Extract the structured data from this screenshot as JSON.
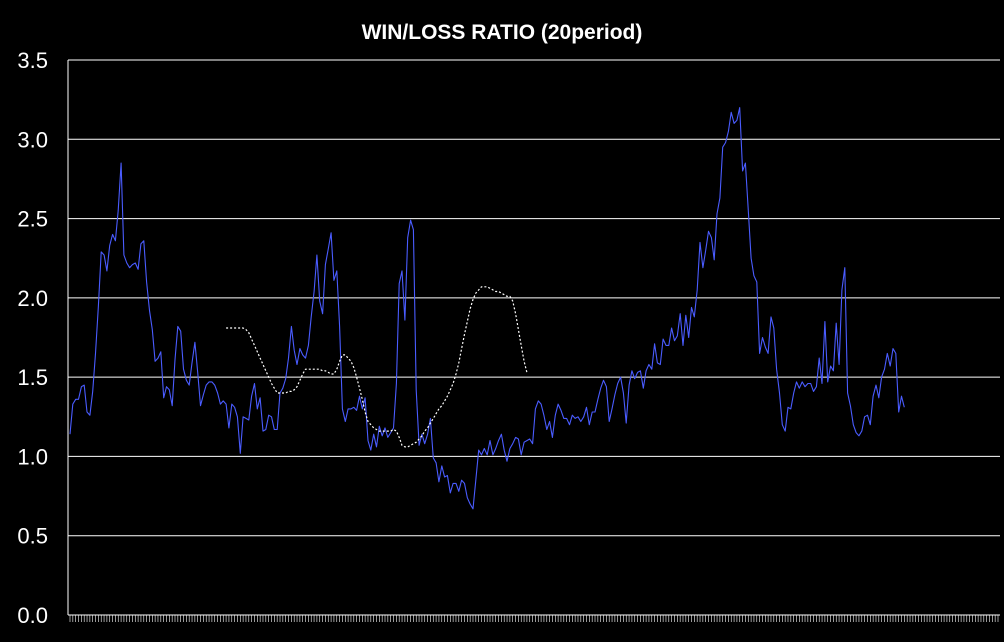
{
  "chart_data": {
    "type": "line",
    "title": "WIN/LOSS RATIO (20period)",
    "xlabel": "",
    "ylabel": "",
    "ylim": [
      0,
      3.5
    ],
    "y_ticks": [
      "0.0",
      "0.5",
      "1.0",
      "1.5",
      "2.0",
      "2.5",
      "3.0",
      "3.5"
    ],
    "x_tick_labels": "none (dense unlabeled tick marks)",
    "grid": "horizontal",
    "legend": "none",
    "background_color": "#000000",
    "text_color": "#ffffff",
    "x_count": 328,
    "series": [
      {
        "style": "solid",
        "color": "#4a5cff",
        "start_index": 0,
        "values": [
          1.14,
          1.33,
          1.36,
          1.36,
          1.44,
          1.45,
          1.28,
          1.26,
          1.41,
          1.65,
          1.95,
          2.29,
          2.27,
          2.17,
          2.33,
          2.4,
          2.36,
          2.55,
          2.85,
          2.27,
          2.22,
          2.19,
          2.21,
          2.22,
          2.18,
          2.34,
          2.36,
          2.1,
          1.92,
          1.8,
          1.6,
          1.62,
          1.66,
          1.37,
          1.44,
          1.42,
          1.32,
          1.61,
          1.82,
          1.79,
          1.55,
          1.48,
          1.45,
          1.59,
          1.72,
          1.53,
          1.32,
          1.39,
          1.45,
          1.47,
          1.47,
          1.45,
          1.4,
          1.33,
          1.35,
          1.33,
          1.18,
          1.33,
          1.31,
          1.25,
          1.02,
          1.25,
          1.24,
          1.23,
          1.38,
          1.46,
          1.3,
          1.37,
          1.16,
          1.17,
          1.26,
          1.25,
          1.17,
          1.17,
          1.4,
          1.43,
          1.49,
          1.62,
          1.82,
          1.67,
          1.58,
          1.68,
          1.64,
          1.62,
          1.7,
          1.88,
          2.04,
          2.27,
          1.98,
          1.9,
          2.21,
          2.31,
          2.41,
          2.11,
          2.17,
          1.82,
          1.3,
          1.22,
          1.3,
          1.3,
          1.31,
          1.29,
          1.38,
          1.3,
          1.37,
          1.1,
          1.04,
          1.14,
          1.06,
          1.19,
          1.13,
          1.18,
          1.12,
          1.15,
          1.18,
          1.46,
          2.09,
          2.17,
          1.86,
          2.38,
          2.49,
          2.43,
          1.42,
          1.07,
          1.14,
          1.08,
          1.14,
          1.24,
          0.99,
          0.96,
          0.84,
          0.94,
          0.87,
          0.88,
          0.77,
          0.83,
          0.83,
          0.78,
          0.85,
          0.83,
          0.74,
          0.7,
          0.67,
          0.85,
          1.04,
          1.01,
          1.05,
          1.01,
          1.1,
          1.01,
          1.05,
          1.1,
          1.14,
          1.04,
          0.97,
          1.05,
          1.08,
          1.12,
          1.11,
          1.01,
          1.09,
          1.1,
          1.11,
          1.08,
          1.3,
          1.35,
          1.33,
          1.26,
          1.17,
          1.22,
          1.12,
          1.26,
          1.33,
          1.29,
          1.24,
          1.24,
          1.2,
          1.26,
          1.24,
          1.25,
          1.22,
          1.25,
          1.31,
          1.2,
          1.28,
          1.28,
          1.36,
          1.43,
          1.48,
          1.44,
          1.22,
          1.3,
          1.39,
          1.46,
          1.5,
          1.4,
          1.21,
          1.45,
          1.54,
          1.49,
          1.53,
          1.54,
          1.43,
          1.54,
          1.58,
          1.55,
          1.71,
          1.59,
          1.58,
          1.74,
          1.7,
          1.7,
          1.81,
          1.73,
          1.76,
          1.9,
          1.7,
          1.89,
          1.75,
          1.94,
          1.88,
          2.05,
          2.35,
          2.19,
          2.3,
          2.42,
          2.38,
          2.24,
          2.53,
          2.63,
          2.95,
          2.98,
          3.05,
          3.17,
          3.1,
          3.12,
          3.2,
          2.8,
          2.85,
          2.55,
          2.25,
          2.14,
          2.1,
          1.65,
          1.75,
          1.69,
          1.65,
          1.88,
          1.81,
          1.55,
          1.4,
          1.2,
          1.16,
          1.31,
          1.3,
          1.4,
          1.47,
          1.43,
          1.47,
          1.44,
          1.46,
          1.46,
          1.41,
          1.44,
          1.62,
          1.46,
          1.85,
          1.47,
          1.57,
          1.54,
          1.84,
          1.58,
          2.05,
          2.19,
          1.4,
          1.32,
          1.2,
          1.15,
          1.13,
          1.16,
          1.25,
          1.26,
          1.2,
          1.38,
          1.45,
          1.37,
          1.5,
          1.55,
          1.65,
          1.57,
          1.68,
          1.65,
          1.28,
          1.38,
          1.31
        ]
      },
      {
        "style": "dotted",
        "color": "#ffffff",
        "start_index": 55,
        "values": [
          1.81,
          1.81,
          1.81,
          1.81,
          1.81,
          1.81,
          1.81,
          1.8,
          1.78,
          1.74,
          1.7,
          1.66,
          1.62,
          1.58,
          1.54,
          1.5,
          1.46,
          1.43,
          1.4,
          1.4,
          1.4,
          1.4,
          1.41,
          1.41,
          1.42,
          1.44,
          1.48,
          1.52,
          1.55,
          1.55,
          1.55,
          1.55,
          1.55,
          1.55,
          1.54,
          1.54,
          1.53,
          1.52,
          1.52,
          1.55,
          1.6,
          1.64,
          1.64,
          1.62,
          1.6,
          1.56,
          1.5,
          1.43,
          1.36,
          1.28,
          1.22,
          1.2,
          1.18,
          1.17,
          1.16,
          1.16,
          1.16,
          1.16,
          1.16,
          1.17,
          1.16,
          1.12,
          1.07,
          1.06,
          1.06,
          1.07,
          1.08,
          1.09,
          1.11,
          1.13,
          1.16,
          1.18,
          1.21,
          1.24,
          1.27,
          1.3,
          1.32,
          1.35,
          1.38,
          1.42,
          1.46,
          1.52,
          1.59,
          1.68,
          1.77,
          1.85,
          1.93,
          1.99,
          2.03,
          2.05,
          2.07,
          2.07,
          2.07,
          2.06,
          2.05,
          2.04,
          2.04,
          2.03,
          2.02,
          2.01,
          2.01,
          1.98,
          1.9,
          1.8,
          1.7,
          1.6,
          1.53
        ]
      }
    ]
  }
}
